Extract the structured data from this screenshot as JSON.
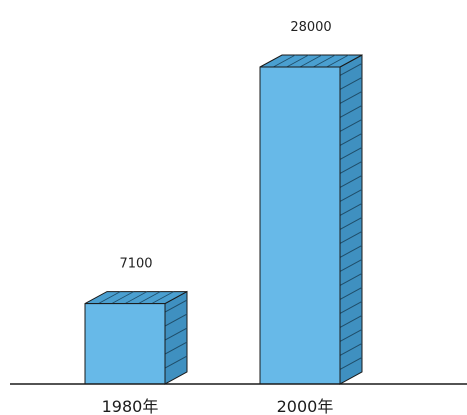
{
  "colors": {
    "bar_front": "#67b9e8",
    "bar_top": "#4a9fd0",
    "bar_side": "#3f90c0",
    "hatch": "#1f4d69",
    "outline": "#1a1a1a",
    "axis": "#1a1a1a",
    "background": "#ffffff"
  },
  "chart_data": {
    "type": "bar",
    "categories": [
      "1980年",
      "2000年"
    ],
    "values": [
      7100,
      28000
    ],
    "title": "",
    "xlabel": "",
    "ylabel": "",
    "ylim": [
      0,
      28000
    ],
    "grid": false,
    "style": "3d-bars",
    "data_labels": [
      "7100",
      "28000"
    ]
  }
}
